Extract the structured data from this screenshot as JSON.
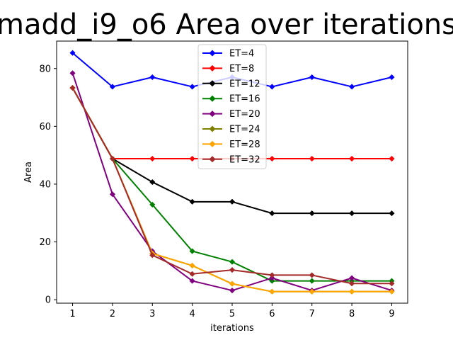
{
  "chart_data": {
    "type": "line",
    "title": "madd_i9_o6 Area over iterations",
    "xlabel": "iterations",
    "ylabel": "Area",
    "x": [
      1,
      2,
      3,
      4,
      5,
      6,
      7,
      8,
      9
    ],
    "xlim": [
      0.6,
      9.4
    ],
    "ylim": [
      -1.2,
      89.5
    ],
    "yticks": [
      0,
      20,
      40,
      60,
      80
    ],
    "grid": false,
    "legend_position": "upper center",
    "series": [
      {
        "name": "ET=4",
        "color": "#0000ff",
        "values": [
          85.4,
          73.7,
          77.0,
          73.7,
          77.0,
          73.7,
          77.0,
          73.7,
          77.0
        ]
      },
      {
        "name": "ET=8",
        "color": "#ff0000",
        "values": [
          73.3,
          48.8,
          48.8,
          48.8,
          48.8,
          48.8,
          48.8,
          48.8,
          48.8
        ]
      },
      {
        "name": "ET=12",
        "color": "#000000",
        "values": [
          73.3,
          48.8,
          40.7,
          33.9,
          33.9,
          29.9,
          29.9,
          29.9,
          29.9
        ]
      },
      {
        "name": "ET=16",
        "color": "#008000",
        "values": [
          73.3,
          48.8,
          32.9,
          16.8,
          13.1,
          6.5,
          6.5,
          6.5,
          6.5
        ]
      },
      {
        "name": "ET=20",
        "color": "#800080",
        "values": [
          78.4,
          36.5,
          16.8,
          6.5,
          3.2,
          7.5,
          3.2,
          7.5,
          3.2
        ]
      },
      {
        "name": "ET=24",
        "color": "#808000",
        "values": [
          73.3,
          48.8,
          16.0,
          11.8,
          5.5,
          2.8,
          2.8,
          2.8,
          2.8
        ]
      },
      {
        "name": "ET=28",
        "color": "#ffa500",
        "values": [
          73.3,
          48.8,
          16.0,
          11.8,
          5.5,
          2.8,
          2.8,
          2.8,
          2.8
        ]
      },
      {
        "name": "ET=32",
        "color": "#a52a2a",
        "values": [
          73.3,
          48.8,
          15.4,
          8.9,
          10.3,
          8.5,
          8.5,
          5.6,
          5.6
        ]
      }
    ]
  }
}
